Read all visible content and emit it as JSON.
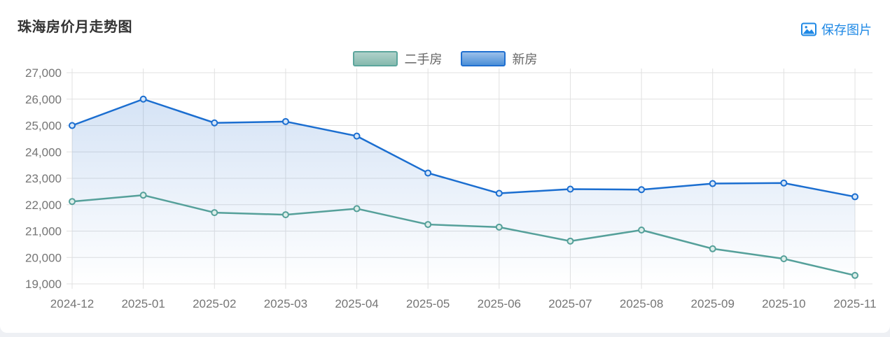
{
  "page": {
    "title": "珠海房价月走势图",
    "save_button": {
      "label": "保存图片"
    }
  },
  "colors": {
    "link_blue": "#1e88e5",
    "grid": "#e0e0e0",
    "axis_text": "#757575",
    "title_text": "#333333",
    "card_background": "#ffffff",
    "page_background": "#eef0f4"
  },
  "chart_data": {
    "type": "line",
    "title": "珠海房价月走势图",
    "categories": [
      "2024-12",
      "2025-01",
      "2025-02",
      "2025-03",
      "2025-04",
      "2025-05",
      "2025-06",
      "2025-07",
      "2025-08",
      "2025-09",
      "2025-10",
      "2025-11"
    ],
    "series": [
      {
        "name": "二手房",
        "color": "#55a09a",
        "marker_fill": "#ddeeea",
        "area": false,
        "swatch": {
          "border": "#5ba59c",
          "fill_top": "#b0d1ca",
          "fill_bottom": "#85b9ae"
        },
        "values": [
          22120,
          22360,
          21700,
          21620,
          21850,
          21250,
          21150,
          20620,
          21040,
          20330,
          19950,
          19320
        ]
      },
      {
        "name": "新房",
        "color": "#1b6ed0",
        "marker_fill": "#d6e6f8",
        "area": true,
        "area_rgb": "64,128,210",
        "swatch": {
          "border": "#1f6fd0",
          "fill_top": "#9cc0ea",
          "fill_bottom": "#4c8fd8"
        },
        "values": [
          25000,
          26000,
          25100,
          25150,
          24600,
          23200,
          22430,
          22590,
          22570,
          22800,
          22820,
          22300
        ]
      }
    ],
    "xlabel": "",
    "ylabel": "",
    "ylim": [
      19000,
      27000
    ],
    "ytick_step": 1000,
    "grid": true,
    "legend_position": "top-center"
  }
}
